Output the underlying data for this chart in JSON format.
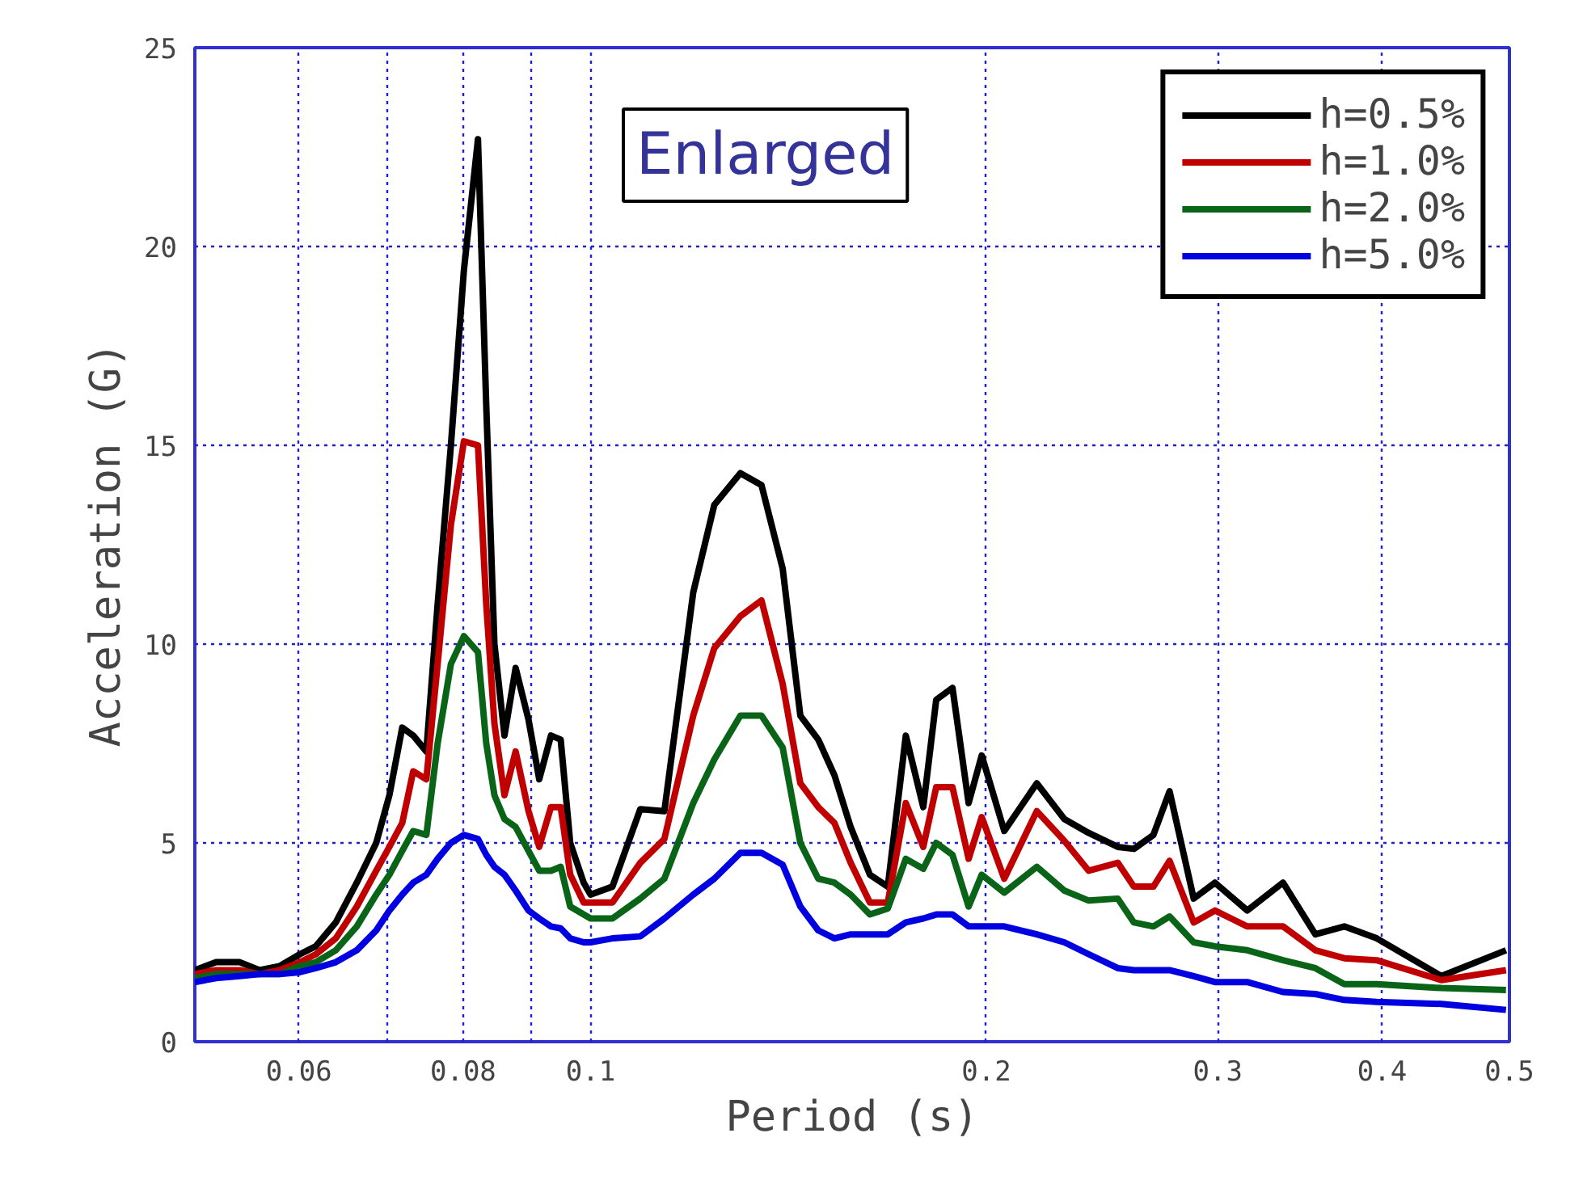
{
  "chart_data": {
    "type": "line",
    "xlabel": "Period (s)",
    "ylabel": "Acceleration (G)",
    "annotations": [
      "Enlarged"
    ],
    "log": "x",
    "grid": true,
    "legend": "top right",
    "line_style": "solid",
    "marker": "none",
    "xlim": [
      0.05,
      0.5
    ],
    "ylim": [
      0,
      25
    ],
    "xticks": [
      0.06,
      {
        "value": 0.07,
        "label": null
      },
      0.08,
      {
        "value": 0.09,
        "label": null
      },
      0.1,
      0.2,
      0.3,
      0.4,
      0.5
    ],
    "yticks": [
      0,
      5,
      10,
      15,
      20,
      25
    ],
    "x": [
      0.05,
      0.0519,
      0.0541,
      0.056,
      0.058,
      0.0601,
      0.0618,
      0.064,
      0.0664,
      0.0687,
      0.0703,
      0.0719,
      0.0733,
      0.075,
      0.0765,
      0.0783,
      0.0801,
      0.0821,
      0.0833,
      0.0845,
      0.086,
      0.0877,
      0.0897,
      0.0914,
      0.0933,
      0.0949,
      0.0965,
      0.0988,
      0.1,
      0.1039,
      0.1091,
      0.1138,
      0.1197,
      0.1242,
      0.13,
      0.1349,
      0.14,
      0.1444,
      0.149,
      0.1533,
      0.1577,
      0.1631,
      0.1683,
      0.1737,
      0.1791,
      0.1832,
      0.1885,
      0.1939,
      0.1984,
      0.2064,
      0.2185,
      0.2293,
      0.2393,
      0.2518,
      0.259,
      0.268,
      0.2757,
      0.2876,
      0.2985,
      0.3159,
      0.3363,
      0.3559,
      0.3744,
      0.3963,
      0.4438,
      0.497
    ],
    "series": [
      {
        "name": "h=0.5%",
        "color": "#000000",
        "values": [
          1.8,
          2.0,
          2.0,
          1.8,
          1.9,
          2.2,
          2.4,
          3.0,
          4.0,
          5.0,
          6.2,
          7.9,
          7.7,
          7.3,
          11,
          15,
          19.4,
          22.7,
          16,
          10,
          7.7,
          9.4,
          8.1,
          6.6,
          7.7,
          7.6,
          5,
          4.0,
          3.7,
          3.9,
          5.85,
          5.8,
          11.3,
          13.5,
          14.3,
          14.0,
          11.9,
          8.2,
          7.6,
          6.7,
          5.4,
          4.2,
          3.9,
          7.7,
          5.9,
          8.6,
          8.9,
          6.0,
          7.2,
          5.3,
          6.5,
          5.6,
          5.25,
          4.9,
          4.85,
          5.2,
          6.3,
          3.6,
          4.0,
          3.3,
          4.0,
          2.7,
          2.9,
          2.6,
          1.65,
          2.3
        ]
      },
      {
        "name": "h=1.0%",
        "color": "#c00000",
        "values": [
          1.7,
          1.8,
          1.8,
          1.7,
          1.8,
          2.0,
          2.2,
          2.6,
          3.4,
          4.3,
          4.9,
          5.5,
          6.8,
          6.6,
          9.5,
          13,
          15.1,
          15.0,
          11,
          8,
          6.2,
          7.3,
          5.8,
          4.9,
          5.9,
          5.9,
          4.2,
          3.5,
          3.5,
          3.5,
          4.5,
          5.1,
          8.2,
          9.9,
          10.7,
          11.1,
          9.0,
          6.5,
          5.9,
          5.5,
          4.5,
          3.5,
          3.5,
          6.0,
          4.9,
          6.4,
          6.4,
          4.6,
          5.65,
          4.1,
          5.8,
          5.05,
          4.3,
          4.5,
          3.9,
          3.9,
          4.55,
          3.0,
          3.3,
          2.9,
          2.9,
          2.3,
          2.1,
          2.05,
          1.55,
          1.8
        ]
      },
      {
        "name": "h=2.0%",
        "color": "#0a6418",
        "values": [
          1.6,
          1.7,
          1.7,
          1.7,
          1.7,
          1.9,
          2.0,
          2.3,
          2.9,
          3.7,
          4.2,
          4.8,
          5.3,
          5.2,
          7.5,
          9.5,
          10.2,
          9.8,
          7.5,
          6.2,
          5.6,
          5.4,
          4.8,
          4.3,
          4.3,
          4.4,
          3.4,
          3.2,
          3.1,
          3.1,
          3.6,
          4.1,
          6.0,
          7.1,
          8.2,
          8.2,
          7.4,
          5.0,
          4.1,
          4.0,
          3.7,
          3.2,
          3.35,
          4.6,
          4.35,
          5.0,
          4.7,
          3.4,
          4.2,
          3.75,
          4.4,
          3.8,
          3.55,
          3.6,
          3.0,
          2.9,
          3.15,
          2.5,
          2.4,
          2.3,
          2.05,
          1.85,
          1.45,
          1.45,
          1.35,
          1.3
        ]
      },
      {
        "name": "h=5.0%",
        "color": "#0000e0",
        "values": [
          1.5,
          1.6,
          1.65,
          1.7,
          1.7,
          1.75,
          1.85,
          2.0,
          2.3,
          2.8,
          3.3,
          3.7,
          4.0,
          4.2,
          4.6,
          5.0,
          5.2,
          5.1,
          4.7,
          4.4,
          4.2,
          3.8,
          3.3,
          3.1,
          2.9,
          2.85,
          2.6,
          2.5,
          2.5,
          2.6,
          2.65,
          3.1,
          3.7,
          4.1,
          4.75,
          4.75,
          4.45,
          3.4,
          2.8,
          2.6,
          2.7,
          2.7,
          2.7,
          3.0,
          3.1,
          3.2,
          3.2,
          2.9,
          2.9,
          2.9,
          2.7,
          2.5,
          2.2,
          1.85,
          1.8,
          1.8,
          1.8,
          1.65,
          1.5,
          1.5,
          1.25,
          1.2,
          1.05,
          1.0,
          0.95,
          0.8
        ]
      }
    ]
  }
}
